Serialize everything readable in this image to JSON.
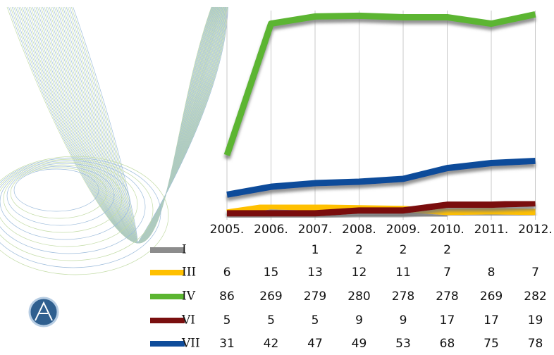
{
  "chart_data": {
    "type": "line",
    "categories": [
      "2005.",
      "2006.",
      "2007.",
      "2008.",
      "2009.",
      "2010.",
      "2011.",
      "2012."
    ],
    "series": [
      {
        "name": "I",
        "color": "#8c8c8c",
        "values": [
          null,
          null,
          1,
          2,
          2,
          2,
          null,
          null
        ]
      },
      {
        "name": "III",
        "color": "#ffc000",
        "values": [
          6,
          15,
          13,
          12,
          11,
          7,
          8,
          7
        ]
      },
      {
        "name": "IV",
        "color": "#5bb531",
        "values": [
          86,
          269,
          279,
          280,
          278,
          278,
          269,
          282
        ]
      },
      {
        "name": "VI",
        "color": "#7a0f0f",
        "values": [
          5,
          5,
          5,
          9,
          9,
          17,
          17,
          19
        ]
      },
      {
        "name": "VII",
        "color": "#0f4c9a",
        "values": [
          31,
          42,
          47,
          49,
          53,
          68,
          75,
          78
        ]
      }
    ],
    "grid": true
  }
}
